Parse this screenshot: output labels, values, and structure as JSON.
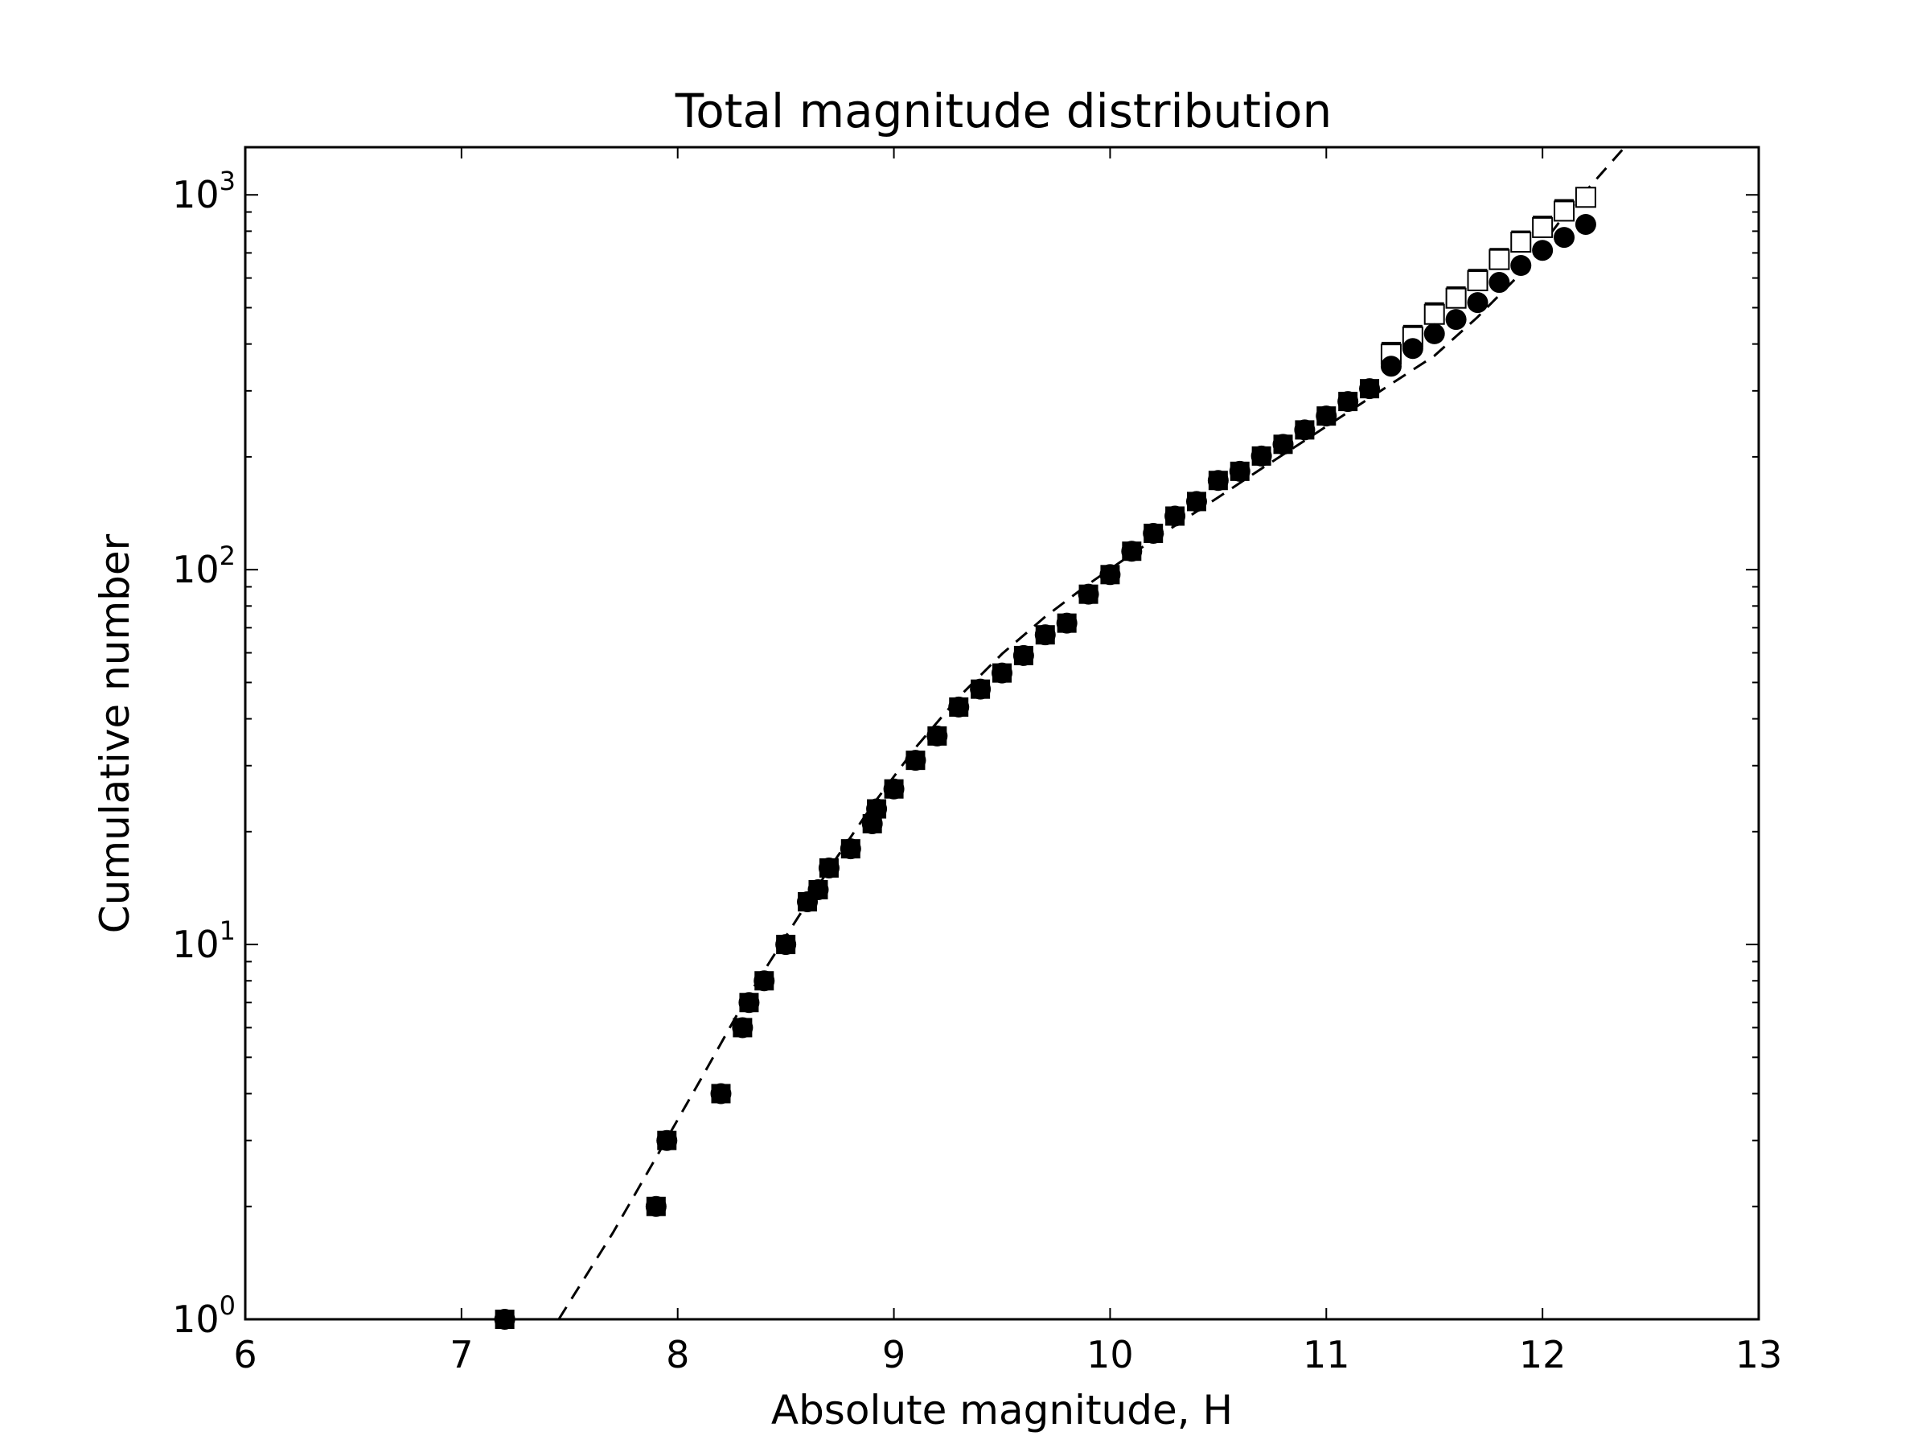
{
  "chart_data": {
    "type": "scatter",
    "title": "Total magnitude distribution",
    "xlabel": "Absolute magnitude, H",
    "ylabel": "Cumulative number",
    "xlim": [
      6,
      13
    ],
    "ylim": [
      1,
      1340
    ],
    "yscale": "log",
    "x_ticks": [
      "6",
      "7",
      "8",
      "9",
      "10",
      "11",
      "12",
      "13"
    ],
    "y_ticks": [
      {
        "base": "10",
        "exp": "0"
      },
      {
        "base": "10",
        "exp": "1"
      },
      {
        "base": "10",
        "exp": "2"
      },
      {
        "base": "10",
        "exp": "3"
      }
    ],
    "grid": false,
    "legend": "none",
    "series": [
      {
        "marker": "square-filled",
        "color": "#000000",
        "points": [
          [
            7.2,
            1
          ],
          [
            7.9,
            2
          ],
          [
            7.95,
            3
          ],
          [
            8.2,
            4
          ],
          [
            8.3,
            6
          ],
          [
            8.33,
            7
          ],
          [
            8.4,
            8
          ],
          [
            8.5,
            10
          ],
          [
            8.6,
            13
          ],
          [
            8.65,
            14
          ],
          [
            8.7,
            16
          ],
          [
            8.8,
            18
          ],
          [
            8.9,
            21
          ],
          [
            8.92,
            23
          ],
          [
            9.0,
            26
          ],
          [
            9.1,
            31
          ],
          [
            9.2,
            36
          ],
          [
            9.3,
            43
          ],
          [
            9.4,
            48
          ],
          [
            9.5,
            53
          ],
          [
            9.6,
            59
          ],
          [
            9.7,
            67
          ],
          [
            9.8,
            72
          ],
          [
            9.9,
            86
          ],
          [
            10.0,
            97
          ],
          [
            10.1,
            112
          ],
          [
            10.2,
            125
          ],
          [
            10.3,
            139
          ],
          [
            10.4,
            152
          ],
          [
            10.5,
            173
          ],
          [
            10.6,
            183
          ],
          [
            10.7,
            201
          ],
          [
            10.8,
            216
          ],
          [
            10.9,
            236
          ],
          [
            11.0,
            257
          ],
          [
            11.1,
            281
          ],
          [
            11.2,
            304
          ],
          [
            11.3,
            382
          ],
          [
            11.4,
            424
          ],
          [
            11.5,
            487
          ],
          [
            11.6,
            537
          ],
          [
            11.7,
            598
          ],
          [
            11.8,
            680
          ],
          [
            11.9,
            757
          ],
          [
            12.0,
            829
          ],
          [
            12.1,
            918
          ],
          [
            12.2,
            985
          ]
        ]
      },
      {
        "marker": "square-open",
        "color": "#000000",
        "points": [
          [
            11.3,
            376
          ],
          [
            11.4,
            418
          ],
          [
            11.5,
            480
          ],
          [
            11.6,
            530
          ],
          [
            11.7,
            590
          ],
          [
            11.8,
            672
          ],
          [
            11.9,
            748
          ],
          [
            12.0,
            818
          ],
          [
            12.1,
            905
          ],
          [
            12.2,
            985
          ]
        ]
      },
      {
        "marker": "circle-filled",
        "color": "#000000",
        "points": [
          [
            7.2,
            1
          ],
          [
            7.9,
            2
          ],
          [
            7.95,
            3
          ],
          [
            8.2,
            4
          ],
          [
            8.3,
            6
          ],
          [
            8.33,
            7
          ],
          [
            8.4,
            8
          ],
          [
            8.5,
            10
          ],
          [
            8.6,
            13
          ],
          [
            8.65,
            14
          ],
          [
            8.7,
            16
          ],
          [
            8.8,
            18
          ],
          [
            8.9,
            21
          ],
          [
            8.92,
            23
          ],
          [
            9.0,
            26
          ],
          [
            9.1,
            31
          ],
          [
            9.2,
            36
          ],
          [
            9.3,
            43
          ],
          [
            9.4,
            48
          ],
          [
            9.5,
            53
          ],
          [
            9.6,
            59
          ],
          [
            9.7,
            67
          ],
          [
            9.8,
            72
          ],
          [
            9.9,
            86
          ],
          [
            10.0,
            97
          ],
          [
            10.1,
            112
          ],
          [
            10.2,
            125
          ],
          [
            10.3,
            139
          ],
          [
            10.4,
            152
          ],
          [
            10.5,
            173
          ],
          [
            10.6,
            183
          ],
          [
            10.7,
            201
          ],
          [
            10.8,
            216
          ],
          [
            10.9,
            236
          ],
          [
            11.0,
            257
          ],
          [
            11.1,
            281
          ],
          [
            11.2,
            304
          ],
          [
            11.3,
            349
          ],
          [
            11.4,
            389
          ],
          [
            11.5,
            426
          ],
          [
            11.6,
            465
          ],
          [
            11.7,
            516
          ],
          [
            11.8,
            584
          ],
          [
            11.9,
            648
          ],
          [
            12.0,
            711
          ],
          [
            12.1,
            770
          ],
          [
            12.2,
            834
          ]
        ]
      },
      {
        "marker": "dashed-line",
        "color": "#000000",
        "points": [
          [
            7.45,
            1
          ],
          [
            7.7,
            1.7
          ],
          [
            7.9,
            2.7
          ],
          [
            8.1,
            4.3
          ],
          [
            8.3,
            6.9
          ],
          [
            8.5,
            10.5
          ],
          [
            8.7,
            15.9
          ],
          [
            8.9,
            23.5
          ],
          [
            9.1,
            33.5
          ],
          [
            9.3,
            45.7
          ],
          [
            9.5,
            59.6
          ],
          [
            9.7,
            74.9
          ],
          [
            9.9,
            91.5
          ],
          [
            10.1,
            110
          ],
          [
            10.3,
            131
          ],
          [
            10.5,
            156
          ],
          [
            10.7,
            186
          ],
          [
            10.9,
            221
          ],
          [
            11.1,
            263
          ],
          [
            11.3,
            313
          ],
          [
            11.5,
            372
          ],
          [
            11.7,
            472
          ],
          [
            11.9,
            618
          ],
          [
            12.1,
            880
          ],
          [
            12.38,
            1340
          ]
        ]
      }
    ]
  }
}
